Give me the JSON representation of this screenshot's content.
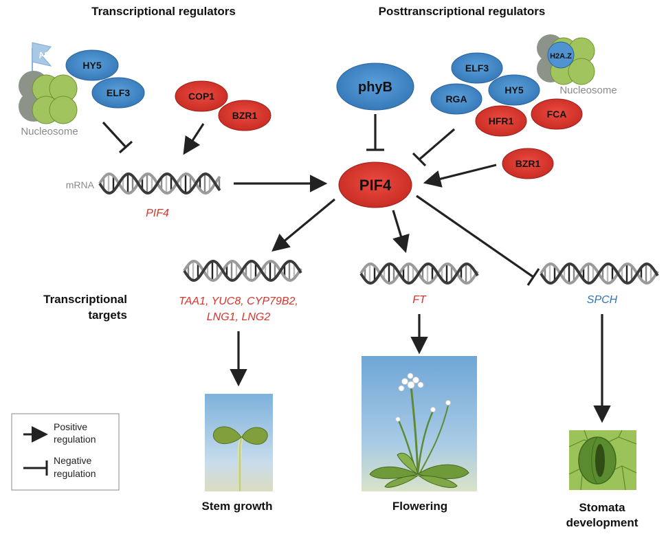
{
  "headers": {
    "transcriptional_regulators": "Transcriptional regulators",
    "posttranscriptional_regulators": "Posttranscriptional regulators",
    "transcriptional_targets_line1": "Transcriptional",
    "transcriptional_targets_line2": "targets"
  },
  "nucleosome_left": {
    "label": "Nucleosome",
    "flag": "Ac"
  },
  "nucleosome_right": {
    "label": "Nucleosome",
    "histone": "H2A.Z"
  },
  "proteins": {
    "hy5_left": "HY5",
    "elf3_left": "ELF3",
    "cop1": "COP1",
    "bzr1_left": "BZR1",
    "phyb": "phyB",
    "elf3_right": "ELF3",
    "rga": "RGA",
    "hy5_right": "HY5",
    "hfr1": "HFR1",
    "fca": "FCA",
    "bzr1_right": "BZR1",
    "pif4": "PIF4"
  },
  "mrna": {
    "label": "mRNA",
    "gene": "PIF4"
  },
  "targets": {
    "growth_genes_line1": "TAA1, YUC8, CYP79B2,",
    "growth_genes_line2": "LNG1, LNG2",
    "flowering_gene": "FT",
    "stomata_gene": "SPCH"
  },
  "outcomes": {
    "stem": "Stem growth",
    "flowering": "Flowering",
    "stomata_line1": "Stomata",
    "stomata_line2": "development"
  },
  "legend": {
    "positive_line1": "Positive",
    "positive_line2": "regulation",
    "negative_line1": "Negative",
    "negative_line2": "regulation"
  },
  "colors": {
    "activator_blue": "#3f86c6",
    "repressor_red": "#d8332b",
    "gene_red": "#d8332b",
    "gene_blue": "#2f74b5",
    "histone_green": "#9bc35a",
    "arrow": "#222222"
  }
}
